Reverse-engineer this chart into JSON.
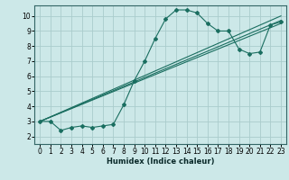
{
  "xlabel": "Humidex (Indice chaleur)",
  "bg_color": "#cce8e8",
  "grid_color": "#aacccc",
  "line_color": "#1a6e60",
  "xlim": [
    -0.5,
    23.5
  ],
  "ylim": [
    1.5,
    10.7
  ],
  "xticks": [
    0,
    1,
    2,
    3,
    4,
    5,
    6,
    7,
    8,
    9,
    10,
    11,
    12,
    13,
    14,
    15,
    16,
    17,
    18,
    19,
    20,
    21,
    22,
    23
  ],
  "yticks": [
    2,
    3,
    4,
    5,
    6,
    7,
    8,
    9,
    10
  ],
  "curve1_x": [
    0,
    1,
    2,
    3,
    4,
    5,
    6,
    7,
    8,
    9,
    10,
    11,
    12,
    13,
    14,
    15,
    16,
    17,
    18,
    19,
    20,
    21,
    22,
    23
  ],
  "curve1_y": [
    3.0,
    3.0,
    2.4,
    2.6,
    2.7,
    2.6,
    2.7,
    2.8,
    4.1,
    5.7,
    7.0,
    8.5,
    9.8,
    10.4,
    10.4,
    10.2,
    9.5,
    9.0,
    9.0,
    7.8,
    7.5,
    7.6,
    9.4,
    9.6
  ],
  "line2_x": [
    0,
    23
  ],
  "line2_y": [
    3.0,
    9.5
  ],
  "line3_x": [
    0,
    23
  ],
  "line3_y": [
    3.0,
    9.7
  ],
  "line4_x": [
    0,
    23
  ],
  "line4_y": [
    3.0,
    10.0
  ]
}
